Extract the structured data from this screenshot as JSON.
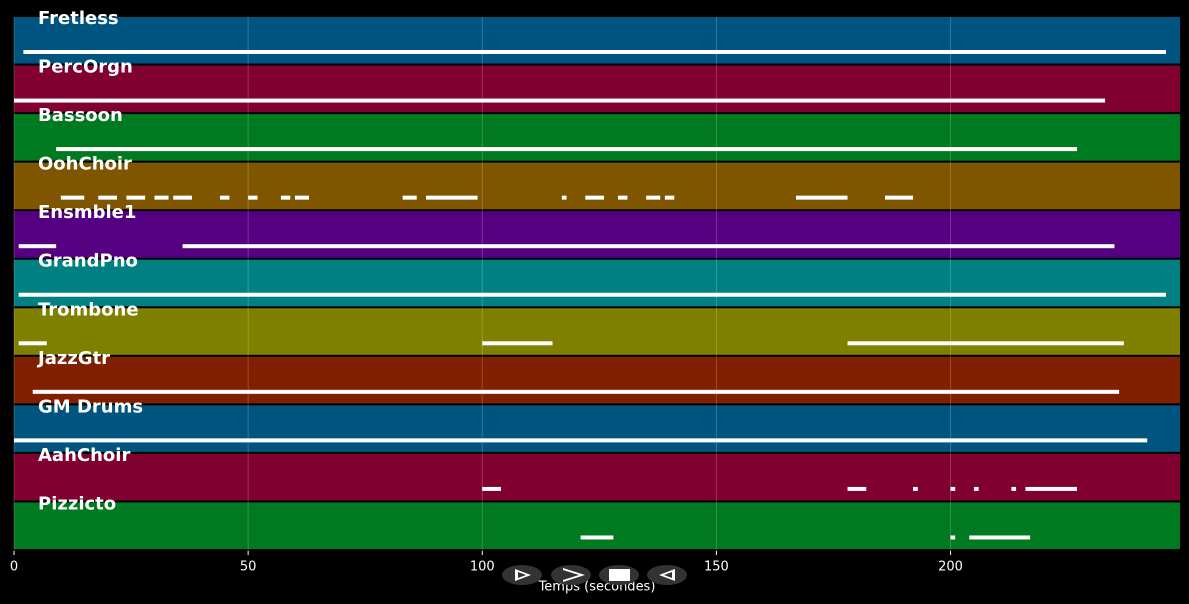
{
  "chart_data": {
    "type": "piano-roll",
    "xlabel": "Temps (secondes)",
    "xlim": [
      0,
      249
    ],
    "xticks": [
      0,
      50,
      100,
      150,
      200
    ],
    "grid": true,
    "tracks": [
      {
        "name": "Fretless",
        "color": "#005580",
        "notes": [
          [
            2,
            246
          ]
        ]
      },
      {
        "name": "PercOrgn",
        "color": "#800030",
        "notes": [
          [
            0,
            233
          ]
        ]
      },
      {
        "name": "Bassoon",
        "color": "#007a20",
        "notes": [
          [
            9,
            227
          ]
        ]
      },
      {
        "name": "OohChoir",
        "color": "#805500",
        "notes": [
          [
            10,
            15
          ],
          [
            18,
            22
          ],
          [
            24,
            28
          ],
          [
            30,
            33
          ],
          [
            34,
            38
          ],
          [
            44,
            46
          ],
          [
            50,
            52
          ],
          [
            57,
            59
          ],
          [
            60,
            63
          ],
          [
            83,
            86
          ],
          [
            88,
            99
          ],
          [
            117,
            118
          ],
          [
            122,
            126
          ],
          [
            129,
            131
          ],
          [
            135,
            138
          ],
          [
            139,
            141
          ],
          [
            167,
            178
          ],
          [
            186,
            192
          ]
        ]
      },
      {
        "name": "Ensmble1",
        "color": "#550080",
        "notes": [
          [
            1,
            9
          ],
          [
            36,
            235
          ]
        ]
      },
      {
        "name": "GrandPno",
        "color": "#008080",
        "notes": [
          [
            1,
            246
          ]
        ]
      },
      {
        "name": "Trombone",
        "color": "#808000",
        "notes": [
          [
            1,
            7
          ],
          [
            100,
            115
          ],
          [
            178,
            237
          ]
        ]
      },
      {
        "name": "JazzGtr",
        "color": "#802000",
        "notes": [
          [
            4,
            236
          ]
        ]
      },
      {
        "name": "GM Drums",
        "color": "#005580",
        "notes": [
          [
            0,
            242
          ]
        ]
      },
      {
        "name": "AahChoir",
        "color": "#800030",
        "notes": [
          [
            100,
            104
          ],
          [
            178,
            182
          ],
          [
            192,
            193
          ],
          [
            200,
            201
          ],
          [
            205,
            206
          ],
          [
            213,
            214
          ],
          [
            216,
            227
          ]
        ]
      },
      {
        "name": "Pizzicto",
        "color": "#007a20",
        "notes": [
          [
            121,
            128
          ],
          [
            200,
            201
          ],
          [
            204,
            217
          ]
        ]
      }
    ]
  }
}
